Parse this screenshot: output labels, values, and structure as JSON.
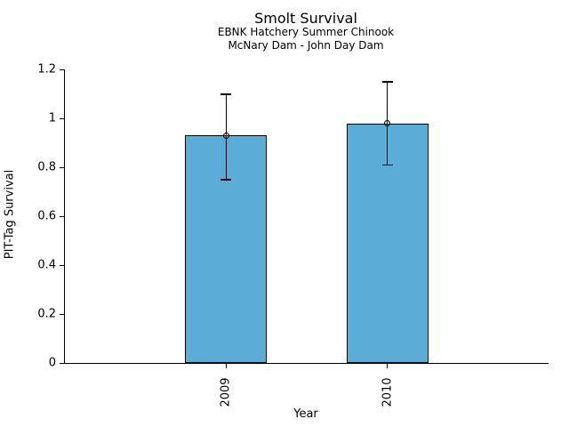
{
  "chart_data": {
    "type": "bar",
    "title": "Smolt Survival",
    "subtitle_line1": "EBNK Hatchery Summer Chinook",
    "subtitle_line2": "McNary Dam - John Day Dam",
    "xlabel": "Year",
    "ylabel": "PIT-Tag Survival",
    "categories": [
      "2009",
      "2010"
    ],
    "values": [
      0.93,
      0.98
    ],
    "error_low": [
      0.75,
      0.81
    ],
    "error_high": [
      1.1,
      1.15
    ],
    "ylim": [
      0,
      1.2
    ],
    "yticks": [
      0,
      0.2,
      0.4,
      0.6,
      0.8,
      1,
      1.2
    ],
    "ytick_labels": [
      "0",
      "0.2",
      "0.4",
      "0.6",
      "0.8",
      "1",
      "1.2"
    ],
    "x_tick_rotation": 90,
    "bar_color": "#5BACD6",
    "bar_edge_color": "#000000",
    "error_color": "#000000",
    "marker": "open-circle",
    "grid": false,
    "legend": false
  }
}
